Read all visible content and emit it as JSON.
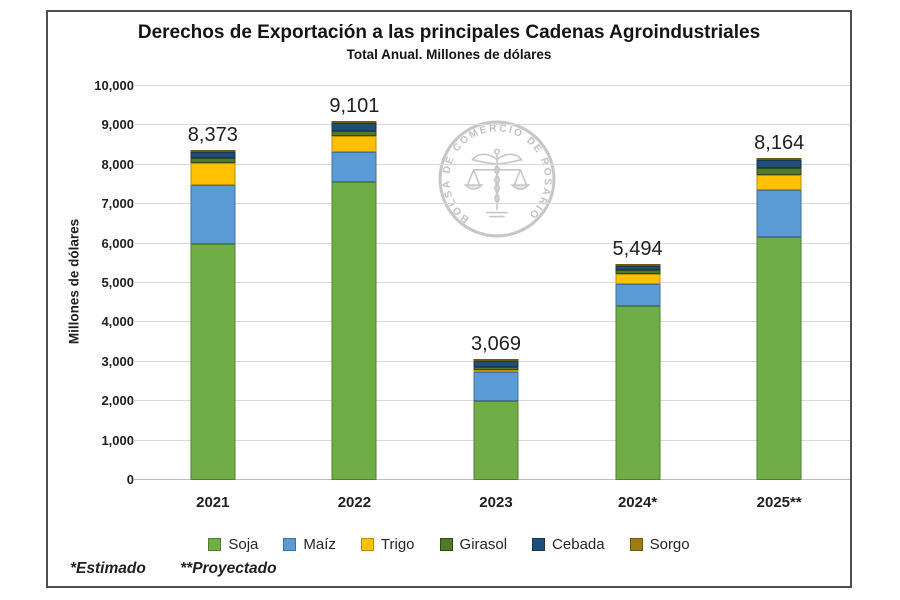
{
  "chart_data": {
    "type": "bar",
    "stacked": true,
    "title": "Derechos de Exportación a las principales Cadenas Agroindustriales",
    "subtitle": "Total Anual. Millones de dólares",
    "ylabel": "Millones de dólares",
    "ylim": [
      0,
      10000
    ],
    "ytick_step": 1000,
    "ytick_labels": [
      "0",
      "1,000",
      "2,000",
      "3,000",
      "4,000",
      "5,000",
      "6,000",
      "7,000",
      "8,000",
      "9,000",
      "10,000"
    ],
    "grid": true,
    "legend_position": "bottom",
    "categories": [
      "2021",
      "2022",
      "2023",
      "2024*",
      "2025**"
    ],
    "totals": [
      8373,
      9101,
      3069,
      5494,
      8164
    ],
    "total_labels": [
      "8,373",
      "9,101",
      "3,069",
      "5,494",
      "8,164"
    ],
    "series": [
      {
        "name": "Soja",
        "color": "#70ad47",
        "border": "#507e32",
        "values": [
          5990,
          7580,
          2040,
          4450,
          6200
        ]
      },
      {
        "name": "Maíz",
        "color": "#5b9bd5",
        "border": "#41719c",
        "values": [
          1510,
          762,
          740,
          560,
          1195
        ]
      },
      {
        "name": "Trigo",
        "color": "#ffc000",
        "border": "#bf9000",
        "values": [
          560,
          422,
          45,
          255,
          375
        ]
      },
      {
        "name": "Girasol",
        "color": "#4f7a28",
        "border": "#2f4a18",
        "values": [
          130,
          112,
          75,
          95,
          165
        ]
      },
      {
        "name": "Cebada",
        "color": "#1f4e79",
        "border": "#153655",
        "values": [
          145,
          205,
          155,
          117,
          205
        ]
      },
      {
        "name": "Sorgo",
        "color": "#9e7c14",
        "border": "#6e570e",
        "values": [
          38,
          20,
          14,
          17,
          24
        ]
      }
    ],
    "footnote_parts": [
      "*Estimado",
      "**Proyectado"
    ],
    "watermark": "BOLSA DE COMERCIO DE ROSARIO"
  }
}
